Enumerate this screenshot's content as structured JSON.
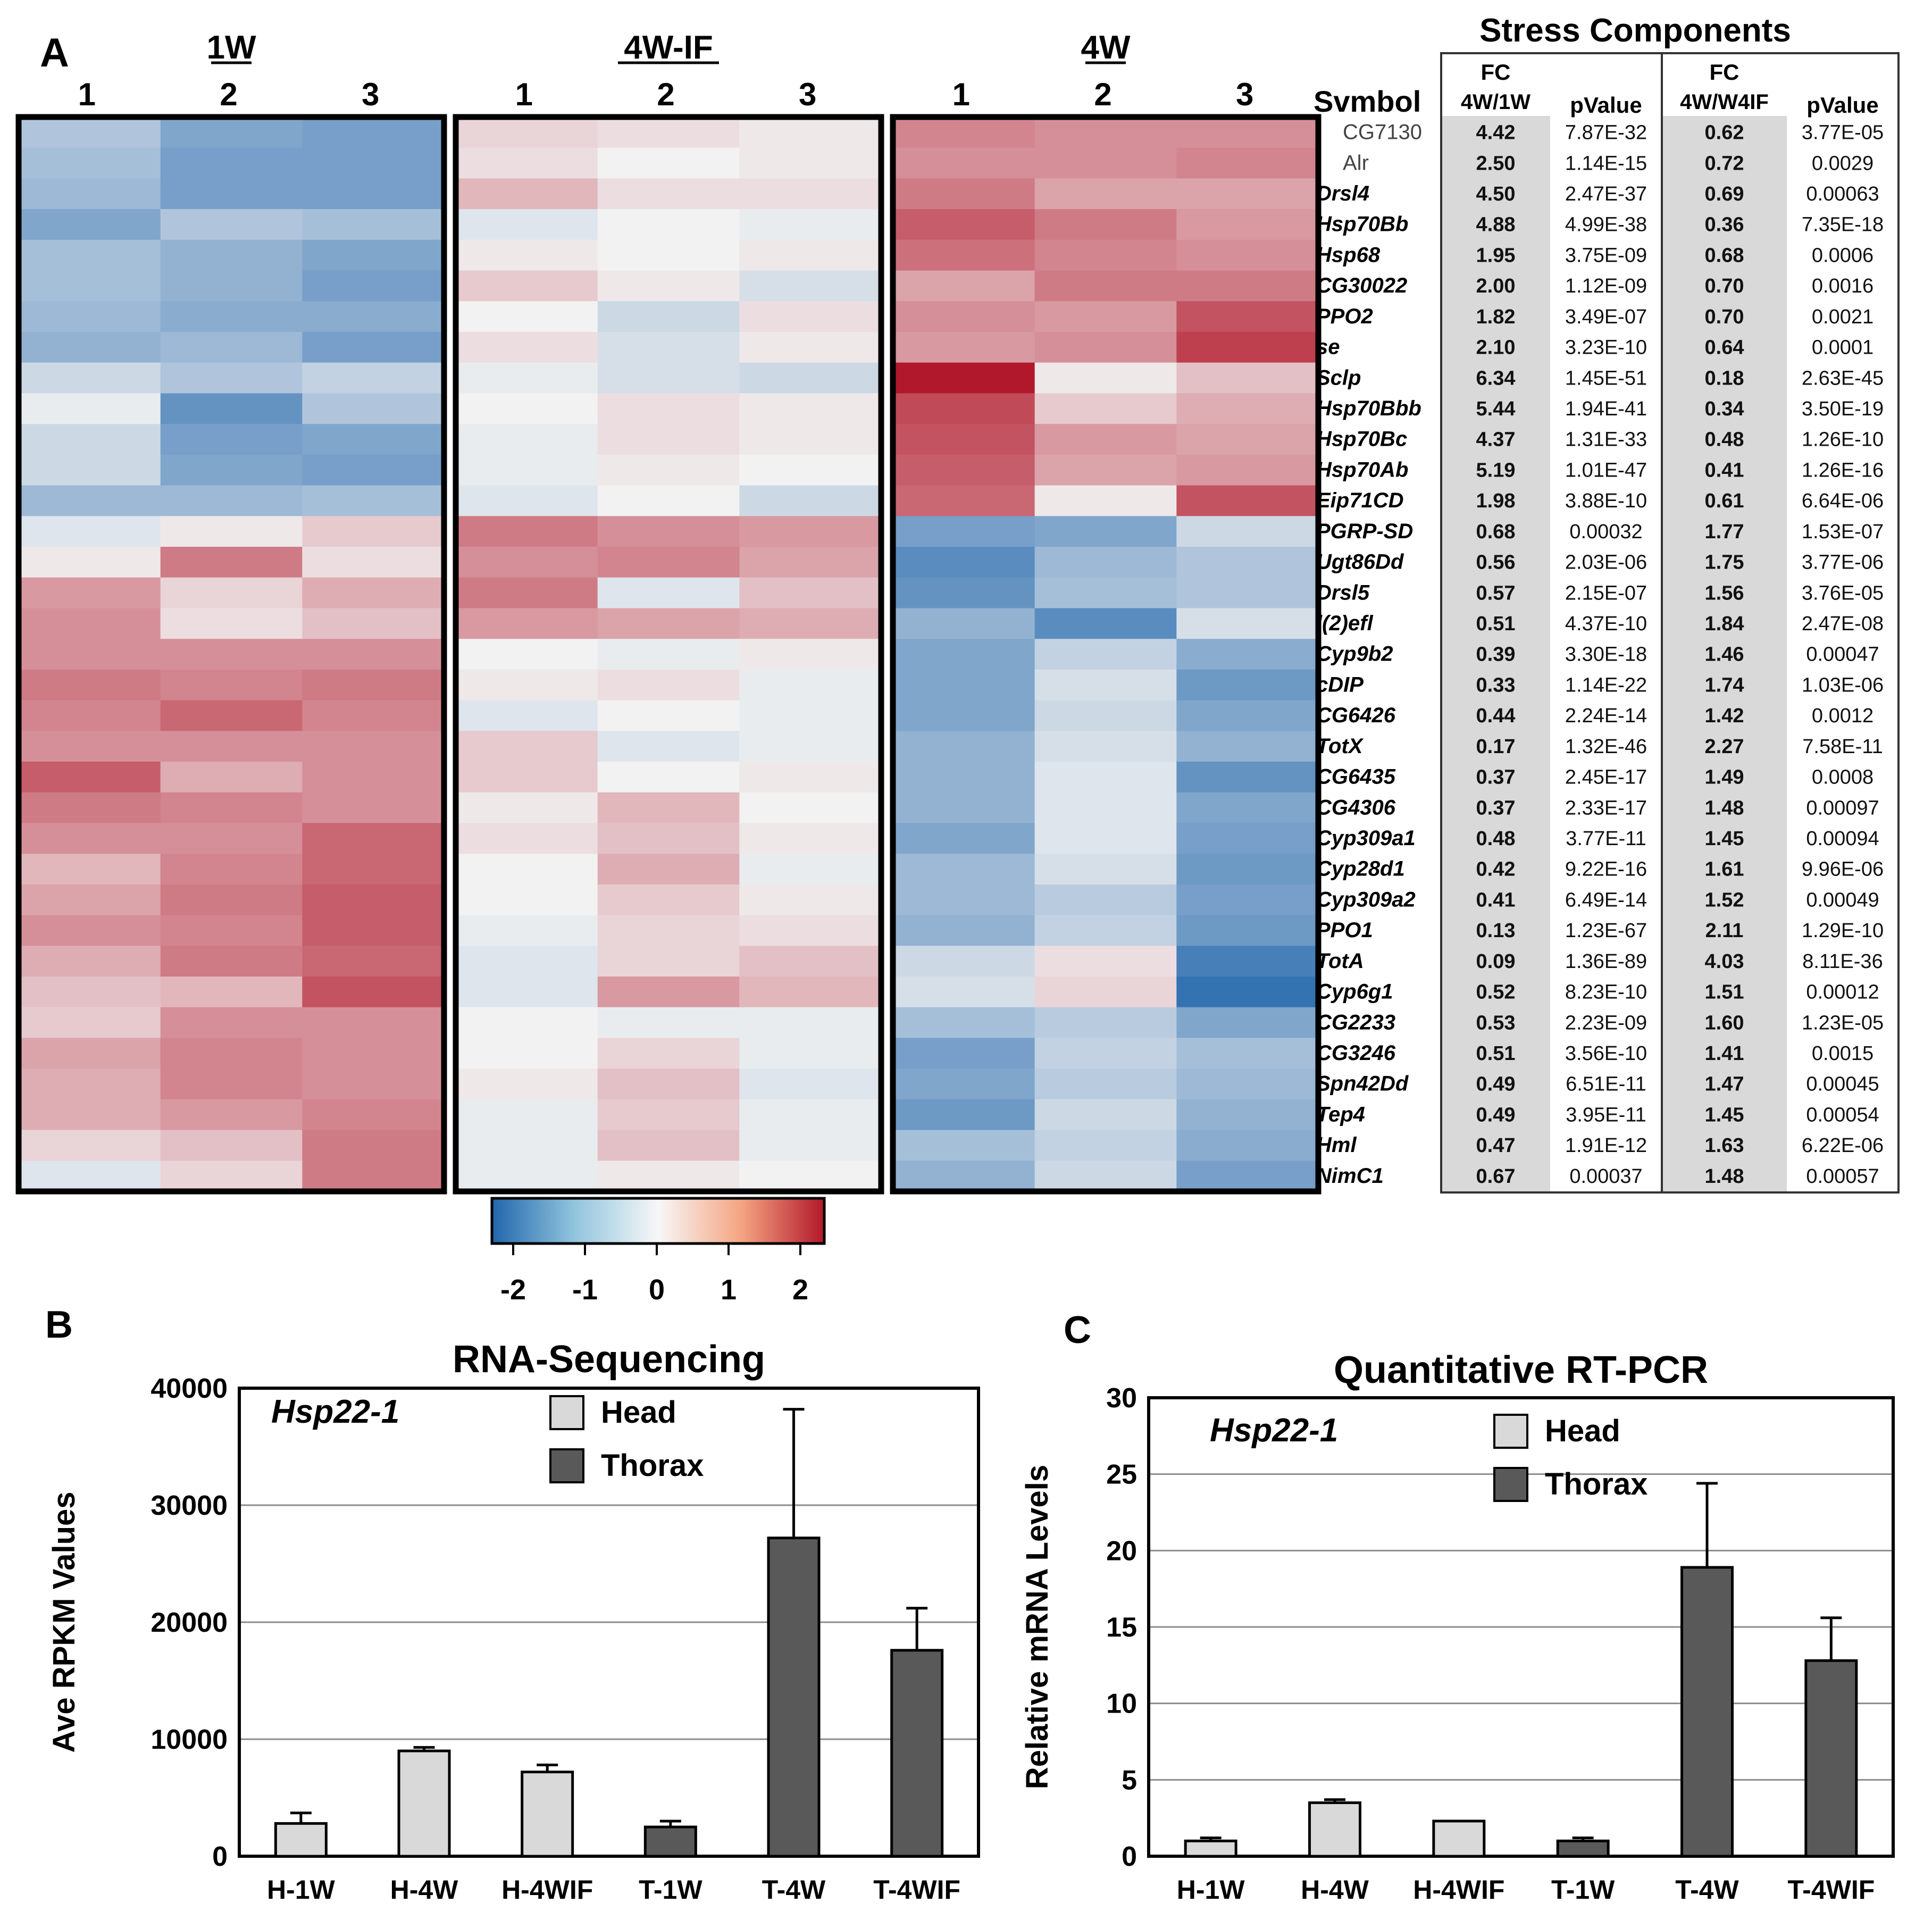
{
  "panels": {
    "a_label": "A",
    "b_label": "B",
    "c_label": "C"
  },
  "heatmap": {
    "groups": [
      "1W",
      "4W-IF",
      "4W"
    ],
    "replicates": [
      "1",
      "2",
      "3"
    ],
    "symbol_header": "Svmbol",
    "symbols": [
      "CG7130",
      "Alr",
      "Drsl4",
      "Hsp70Bb",
      "Hsp68",
      "CG30022",
      "PPO2",
      "se",
      "Sclp",
      "Hsp70Bbb",
      "Hsp70Bc",
      "Hsp70Ab",
      "Eip71CD",
      "PGRP-SD",
      "Ugt86Dd",
      "Drsl5",
      "l(2)efl",
      "Cyp9b2",
      "cDIP",
      "CG6426",
      "TotX",
      "CG6435",
      "CG4306",
      "Cyp309a1",
      "Cyp28d1",
      "Cyp309a2",
      "PPO1",
      "TotA",
      "Cyp6g1",
      "CG2233",
      "CG3246",
      "Spn42Dd",
      "Tep4",
      "Hml",
      "NimC1"
    ],
    "matrix": [
      [
        -0.7,
        -1.2,
        -1.3,
        0.3,
        0.2,
        0.1,
        1.1,
        1.0,
        1.0
      ],
      [
        -0.8,
        -1.3,
        -1.3,
        0.2,
        0.0,
        0.1,
        1.0,
        1.0,
        1.1
      ],
      [
        -0.9,
        -1.3,
        -1.3,
        0.6,
        0.2,
        0.2,
        1.2,
        0.8,
        0.8
      ],
      [
        -1.2,
        -0.7,
        -0.8,
        -0.2,
        0.0,
        -0.1,
        1.5,
        1.2,
        0.9
      ],
      [
        -0.8,
        -1.0,
        -1.2,
        0.1,
        0.0,
        0.1,
        1.3,
        1.1,
        1.0
      ],
      [
        -0.8,
        -1.0,
        -1.3,
        0.4,
        0.1,
        -0.3,
        0.8,
        1.2,
        1.2
      ],
      [
        -0.9,
        -1.1,
        -1.1,
        0.0,
        -0.4,
        0.2,
        1.0,
        0.9,
        1.6
      ],
      [
        -1.0,
        -0.9,
        -1.3,
        0.2,
        -0.3,
        0.1,
        0.9,
        1.0,
        1.8
      ],
      [
        -0.4,
        -0.7,
        -0.5,
        -0.1,
        -0.3,
        -0.4,
        2.2,
        0.1,
        0.5
      ],
      [
        -0.1,
        -1.5,
        -0.7,
        0.0,
        0.2,
        0.1,
        1.7,
        0.4,
        0.7
      ],
      [
        -0.4,
        -1.3,
        -1.2,
        -0.1,
        0.2,
        0.1,
        1.6,
        0.9,
        0.8
      ],
      [
        -0.4,
        -1.2,
        -1.3,
        -0.1,
        0.1,
        0.0,
        1.5,
        0.8,
        0.9
      ],
      [
        -0.9,
        -0.9,
        -0.8,
        -0.2,
        0.0,
        -0.4,
        1.4,
        0.1,
        1.6
      ],
      [
        -0.2,
        0.1,
        0.4,
        1.2,
        1.0,
        0.9,
        -1.3,
        -1.2,
        -0.4
      ],
      [
        0.1,
        1.2,
        0.2,
        1.0,
        1.1,
        0.8,
        -1.6,
        -0.9,
        -0.7
      ],
      [
        0.9,
        0.3,
        0.7,
        1.2,
        -0.2,
        0.5,
        -1.5,
        -0.8,
        -0.7
      ],
      [
        1.0,
        0.2,
        0.5,
        0.9,
        0.8,
        0.7,
        -1.0,
        -1.6,
        -0.3
      ],
      [
        1.0,
        1.0,
        1.0,
        0.0,
        -0.1,
        0.1,
        -1.2,
        -0.5,
        -1.1
      ],
      [
        1.2,
        1.1,
        1.2,
        0.1,
        0.2,
        -0.1,
        -1.2,
        -0.3,
        -1.4
      ],
      [
        1.1,
        1.4,
        1.1,
        -0.2,
        0.0,
        -0.1,
        -1.2,
        -0.4,
        -1.2
      ],
      [
        1.0,
        1.0,
        1.0,
        0.4,
        -0.2,
        -0.1,
        -1.0,
        -0.3,
        -1.0
      ],
      [
        1.5,
        0.7,
        1.0,
        0.4,
        0.0,
        0.1,
        -1.0,
        -0.2,
        -1.5
      ],
      [
        1.2,
        1.1,
        1.0,
        0.1,
        0.6,
        0.0,
        -1.0,
        -0.2,
        -1.2
      ],
      [
        1.0,
        1.0,
        1.4,
        0.2,
        0.5,
        0.1,
        -1.2,
        -0.2,
        -1.3
      ],
      [
        0.6,
        1.1,
        1.4,
        0.0,
        0.7,
        -0.1,
        -0.9,
        -0.3,
        -1.4
      ],
      [
        0.8,
        1.2,
        1.5,
        0.0,
        0.4,
        0.1,
        -0.9,
        -0.6,
        -1.3
      ],
      [
        1.0,
        1.1,
        1.5,
        -0.1,
        0.3,
        0.2,
        -1.0,
        -0.5,
        -1.4
      ],
      [
        0.7,
        1.2,
        1.4,
        -0.2,
        0.3,
        0.5,
        -0.4,
        0.2,
        -1.8
      ],
      [
        0.5,
        0.6,
        1.6,
        -0.2,
        0.9,
        0.6,
        -0.3,
        0.3,
        -2.0
      ],
      [
        0.4,
        1.0,
        1.0,
        0.0,
        -0.1,
        -0.1,
        -0.8,
        -0.6,
        -1.2
      ],
      [
        0.8,
        1.1,
        1.0,
        0.0,
        0.3,
        -0.1,
        -1.3,
        -0.5,
        -0.8
      ],
      [
        0.7,
        1.1,
        1.0,
        0.1,
        0.5,
        -0.2,
        -1.2,
        -0.6,
        -0.9
      ],
      [
        0.7,
        0.9,
        1.1,
        -0.1,
        0.4,
        -0.1,
        -1.4,
        -0.4,
        -1.0
      ],
      [
        0.3,
        0.5,
        1.2,
        -0.1,
        0.5,
        -0.1,
        -0.8,
        -0.5,
        -1.1
      ],
      [
        -0.2,
        0.3,
        1.2,
        -0.1,
        0.1,
        0.0,
        -1.0,
        -0.4,
        -1.3
      ]
    ],
    "colorbar_ticks": [
      "-2",
      "-1",
      "0",
      "1",
      "2"
    ],
    "colors": {
      "negative": "#2166ac",
      "neutral": "#f2f2f2",
      "positive": "#b2182b"
    }
  },
  "stress_table": {
    "title": "Stress Components",
    "fc_label": "FC",
    "col1_sub": "4W/1W",
    "col2_sub": "4W/W4IF",
    "pvalue_label": "pValue",
    "rows": [
      [
        "4.42",
        "7.87E-32",
        "0.62",
        "3.77E-05"
      ],
      [
        "2.50",
        "1.14E-15",
        "0.72",
        "0.0029"
      ],
      [
        "4.50",
        "2.47E-37",
        "0.69",
        "0.00063"
      ],
      [
        "4.88",
        "4.99E-38",
        "0.36",
        "7.35E-18"
      ],
      [
        "1.95",
        "3.75E-09",
        "0.68",
        "0.0006"
      ],
      [
        "2.00",
        "1.12E-09",
        "0.70",
        "0.0016"
      ],
      [
        "1.82",
        "3.49E-07",
        "0.70",
        "0.0021"
      ],
      [
        "2.10",
        "3.23E-10",
        "0.64",
        "0.0001"
      ],
      [
        "6.34",
        "1.45E-51",
        "0.18",
        "2.63E-45"
      ],
      [
        "5.44",
        "1.94E-41",
        "0.34",
        "3.50E-19"
      ],
      [
        "4.37",
        "1.31E-33",
        "0.48",
        "1.26E-10"
      ],
      [
        "5.19",
        "1.01E-47",
        "0.41",
        "1.26E-16"
      ],
      [
        "1.98",
        "3.88E-10",
        "0.61",
        "6.64E-06"
      ],
      [
        "0.68",
        "0.00032",
        "1.77",
        "1.53E-07"
      ],
      [
        "0.56",
        "2.03E-06",
        "1.75",
        "3.77E-06"
      ],
      [
        "0.57",
        "2.15E-07",
        "1.56",
        "3.76E-05"
      ],
      [
        "0.51",
        "4.37E-10",
        "1.84",
        "2.47E-08"
      ],
      [
        "0.39",
        "3.30E-18",
        "1.46",
        "0.00047"
      ],
      [
        "0.33",
        "1.14E-22",
        "1.74",
        "1.03E-06"
      ],
      [
        "0.44",
        "2.24E-14",
        "1.42",
        "0.0012"
      ],
      [
        "0.17",
        "1.32E-46",
        "2.27",
        "7.58E-11"
      ],
      [
        "0.37",
        "2.45E-17",
        "1.49",
        "0.0008"
      ],
      [
        "0.37",
        "2.33E-17",
        "1.48",
        "0.00097"
      ],
      [
        "0.48",
        "3.77E-11",
        "1.45",
        "0.00094"
      ],
      [
        "0.42",
        "9.22E-16",
        "1.61",
        "9.96E-06"
      ],
      [
        "0.41",
        "6.49E-14",
        "1.52",
        "0.00049"
      ],
      [
        "0.13",
        "1.23E-67",
        "2.11",
        "1.29E-10"
      ],
      [
        "0.09",
        "1.36E-89",
        "4.03",
        "8.11E-36"
      ],
      [
        "0.52",
        "8.23E-10",
        "1.51",
        "0.00012"
      ],
      [
        "0.53",
        "2.23E-09",
        "1.60",
        "1.23E-05"
      ],
      [
        "0.51",
        "3.56E-10",
        "1.41",
        "0.0015"
      ],
      [
        "0.49",
        "6.51E-11",
        "1.47",
        "0.00045"
      ],
      [
        "0.49",
        "3.95E-11",
        "1.45",
        "0.00054"
      ],
      [
        "0.47",
        "1.91E-12",
        "1.63",
        "6.22E-06"
      ],
      [
        "0.67",
        "0.00037",
        "1.48",
        "0.00057"
      ]
    ]
  },
  "chart_data": [
    {
      "type": "bar",
      "title": "RNA-Sequencing",
      "annotation": "Hsp22-1",
      "ylabel": "Ave RPKM Values",
      "xlabel": "",
      "ylim": [
        0,
        40000
      ],
      "yticks": [
        "0",
        "10000",
        "20000",
        "30000",
        "40000"
      ],
      "grid": true,
      "legend_position": "top-center",
      "categories": [
        "H-1W",
        "H-4W",
        "H-4WIF",
        "T-1W",
        "T-4W",
        "T-4WIF"
      ],
      "values": [
        2800,
        9000,
        7200,
        2500,
        27200,
        17600
      ],
      "errors": [
        900,
        300,
        600,
        500,
        11000,
        3600
      ],
      "legend": [
        "Head",
        "Thorax"
      ],
      "bar_group": [
        "Head",
        "Head",
        "Head",
        "Thorax",
        "Thorax",
        "Thorax"
      ],
      "colors": {
        "Head": "#d9d9d9",
        "Thorax": "#595959"
      }
    },
    {
      "type": "bar",
      "title": "Quantitative RT-PCR",
      "annotation": "Hsp22-1",
      "ylabel": "Relative mRNA Levels",
      "xlabel": "",
      "ylim": [
        0,
        30
      ],
      "yticks": [
        "0",
        "5",
        "10",
        "15",
        "20",
        "25",
        "30"
      ],
      "grid": true,
      "legend_position": "top-center",
      "categories": [
        "H-1W",
        "H-4W",
        "H-4WIF",
        "T-1W",
        "T-4W",
        "T-4WIF"
      ],
      "values": [
        1.0,
        3.5,
        2.3,
        1.0,
        18.9,
        12.8
      ],
      "errors": [
        0.2,
        0.2,
        0.0,
        0.2,
        5.5,
        2.8
      ],
      "legend": [
        "Head",
        "Thorax"
      ],
      "bar_group": [
        "Head",
        "Head",
        "Head",
        "Thorax",
        "Thorax",
        "Thorax"
      ],
      "colors": {
        "Head": "#d9d9d9",
        "Thorax": "#595959"
      }
    }
  ]
}
